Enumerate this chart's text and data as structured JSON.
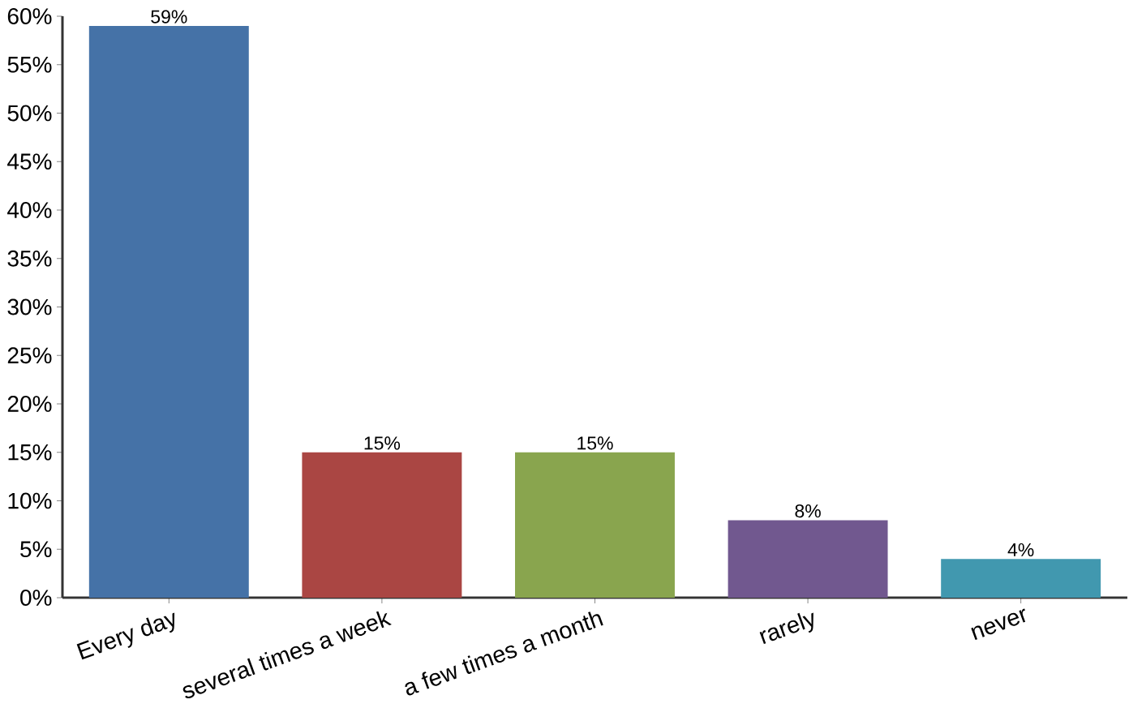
{
  "chart_data": {
    "type": "bar",
    "categories": [
      "Every day",
      "several times a week",
      "a few times a month",
      "rarely",
      "never"
    ],
    "values": [
      59,
      15,
      15,
      8,
      4
    ],
    "colors": [
      "#4572a7",
      "#aa4643",
      "#89a54e",
      "#71588f",
      "#4198af"
    ],
    "value_labels": [
      "59%",
      "15%",
      "15%",
      "8%",
      "4%"
    ],
    "ylim": [
      0,
      60
    ],
    "yticks": [
      {
        "value": 0,
        "label": "0%"
      },
      {
        "value": 5,
        "label": "5%"
      },
      {
        "value": 10,
        "label": "10%"
      },
      {
        "value": 15,
        "label": "15%"
      },
      {
        "value": 20,
        "label": "20%"
      },
      {
        "value": 25,
        "label": "25%"
      },
      {
        "value": 30,
        "label": "30%"
      },
      {
        "value": 35,
        "label": "35%"
      },
      {
        "value": 40,
        "label": "40%"
      },
      {
        "value": 45,
        "label": "45%"
      },
      {
        "value": 50,
        "label": "50%"
      },
      {
        "value": 55,
        "label": "55%"
      },
      {
        "value": 60,
        "label": "60%"
      }
    ]
  }
}
